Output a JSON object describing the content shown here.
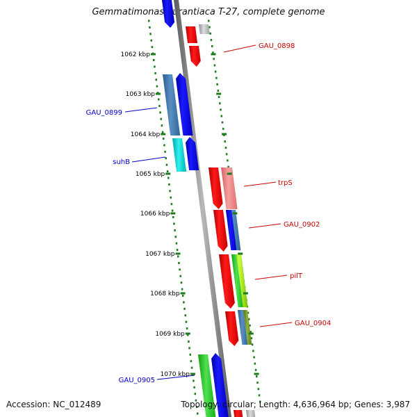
{
  "title": "Gemmatimonas aurantiaca T-27, complete genome",
  "footer": {
    "accession": "Accession: NC_012489",
    "stats": "Topology: circular; Length: 4,636,964 bp; Genes: 3,987"
  },
  "ruler": {
    "unit": "kbp",
    "ticks": [
      {
        "label": "1062 kbp"
      },
      {
        "label": "1063 kbp"
      },
      {
        "label": "1064 kbp"
      },
      {
        "label": "1065 kbp"
      },
      {
        "label": "1066 kbp"
      },
      {
        "label": "1067 kbp"
      },
      {
        "label": "1068 kbp"
      },
      {
        "label": "1069 kbp"
      },
      {
        "label": "1070 kbp"
      }
    ]
  },
  "gene_labels": [
    {
      "name": "GAU_0898",
      "color": "#cc0000",
      "side": "right"
    },
    {
      "name": "GAU_0899",
      "color": "#0000cc",
      "side": "left"
    },
    {
      "name": "suhB",
      "color": "#0000cc",
      "side": "left"
    },
    {
      "name": "trpS",
      "color": "#cc0000",
      "side": "right"
    },
    {
      "name": "GAU_0902",
      "color": "#cc0000",
      "side": "right"
    },
    {
      "name": "pilT",
      "color": "#cc0000",
      "side": "right"
    },
    {
      "name": "GAU_0904",
      "color": "#cc0000",
      "side": "right"
    },
    {
      "name": "GAU_0905",
      "color": "#0000cc",
      "side": "left"
    }
  ],
  "colors": {
    "backbone": "#8a8a8a",
    "ruler_dots": "#1d7a1d",
    "forward_gene": "#0000ff",
    "reverse_gene": "#ff0000"
  }
}
